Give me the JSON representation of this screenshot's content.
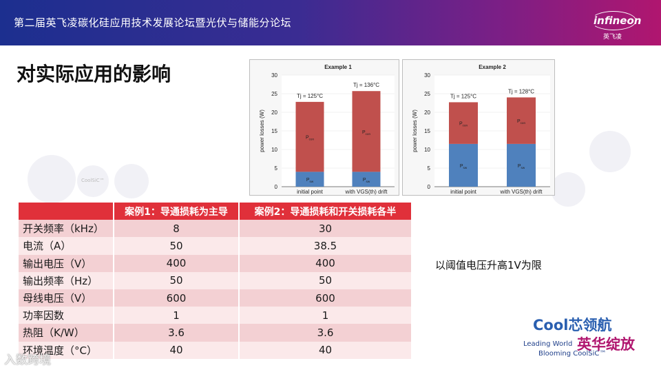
{
  "header": {
    "banner_title": "第二届英飞凌碳化硅应用技术发展论坛暨光伏与储能分论坛",
    "logo_text": "infineon",
    "logo_sub": "英飞凌"
  },
  "page_title": "对实际应用的影响",
  "background_labels": {
    "bubble_coolsic": "CoolSiC™"
  },
  "charts": [
    {
      "title": "Example 1",
      "ylabel": "power losses (W)",
      "yticks": [
        "0",
        "5",
        "10",
        "15",
        "20",
        "25",
        "30"
      ],
      "tj_labels": [
        "Tj = 125°C",
        "Tj = 136°C"
      ],
      "seg_con": "Pcon",
      "seg_sw": "Psw"
    },
    {
      "title": "Example 2",
      "ylabel": "power losses (W)",
      "yticks": [
        "0",
        "5",
        "10",
        "15",
        "20",
        "25",
        "30"
      ],
      "tj_labels": [
        "Tj = 125°C",
        "Tj = 128°C"
      ],
      "seg_con": "Pcon",
      "seg_sw": "Psw"
    }
  ],
  "chart_data": [
    {
      "type": "bar",
      "title": "Example 1",
      "ylabel": "power losses (W)",
      "ylim": [
        0,
        30
      ],
      "categories": [
        "initial point",
        "with VGS(th) drift"
      ],
      "series": [
        {
          "name": "Psw",
          "values": [
            4,
            4
          ]
        },
        {
          "name": "Pcon",
          "values": [
            18.8,
            21.7
          ]
        }
      ],
      "colors": {
        "Psw": "#4f81bd",
        "Pcon": "#c0504d"
      },
      "annotations": [
        "Tj = 125°C",
        "Tj = 136°C"
      ]
    },
    {
      "type": "bar",
      "title": "Example 2",
      "ylabel": "power losses (W)",
      "ylim": [
        0,
        30
      ],
      "categories": [
        "initial point",
        "with VGS(th) drift"
      ],
      "series": [
        {
          "name": "Psw",
          "values": [
            11.5,
            11.5
          ]
        },
        {
          "name": "Pcon",
          "values": [
            11.2,
            12.5
          ]
        }
      ],
      "colors": {
        "Psw": "#4f81bd",
        "Pcon": "#c0504d"
      },
      "annotations": [
        "Tj = 125°C",
        "Tj = 128°C"
      ]
    }
  ],
  "table": {
    "headers": [
      "",
      "案例1：导通损耗为主导",
      "案例2：导通损耗和开关损耗各半"
    ],
    "rows": [
      {
        "label": "开关频率（kHz）",
        "case1": "8",
        "case2": "30"
      },
      {
        "label": "电流（A）",
        "case1": "50",
        "case2": "38.5"
      },
      {
        "label": "输出电压（V）",
        "case1": "400",
        "case2": "400"
      },
      {
        "label": "输出频率（Hz）",
        "case1": "50",
        "case2": "50"
      },
      {
        "label": "母线电压（V）",
        "case1": "600",
        "case2": "600"
      },
      {
        "label": "功率因数",
        "case1": "1",
        "case2": "1"
      },
      {
        "label": "热阻（K/W）",
        "case1": "3.6",
        "case2": "3.6"
      },
      {
        "label": "环境温度（°C）",
        "case1": "40",
        "case2": "40"
      }
    ]
  },
  "note": "以阈值电压升高1V为限",
  "brand": {
    "main": "Cool芯领航",
    "cn2": "英华绽放",
    "en1": "Leading World",
    "en2": "Blooming CoolSiC™"
  },
  "watermark": "入数跨境",
  "colors": {
    "header_accent": "#e0303a",
    "row_dark": "#f3d0d3",
    "row_light": "#fbe9ea"
  }
}
